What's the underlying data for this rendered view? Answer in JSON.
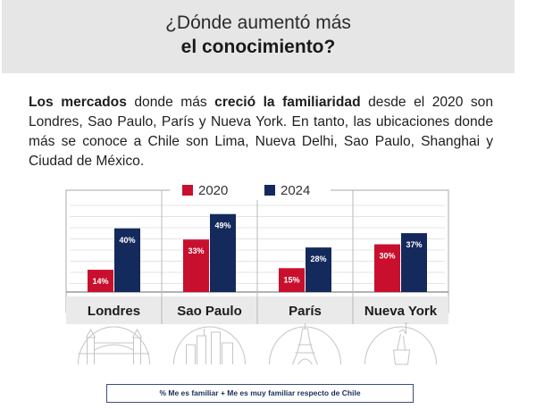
{
  "header": {
    "line1": "¿Dónde aumentó más",
    "line2": "el conocimiento?"
  },
  "intro": {
    "b1": "Los mercados",
    "t1": " donde más ",
    "b2": "creció la familiaridad",
    "t2": " desde el 2020 son Londres, Sao Paulo, París y Nueva York. En tanto, las ubicaciones donde más se conoce a Chile son Lima, Nueva Delhi, Sao Paulo, Shanghai y Ciudad de México."
  },
  "colors": {
    "s2020": "#c8102e",
    "s2024": "#14295c",
    "grid": "#e4e4e4",
    "frame": "#b8b8b8"
  },
  "chart_data": {
    "type": "bar",
    "categories": [
      "Londres",
      "Sao Paulo",
      "París",
      "Nueva York"
    ],
    "series": [
      {
        "name": "2020",
        "values": [
          14,
          33,
          15,
          30
        ],
        "labels": [
          "14%",
          "33%",
          "15%",
          "30%"
        ]
      },
      {
        "name": "2024",
        "values": [
          40,
          49,
          28,
          37
        ],
        "labels": [
          "40%",
          "49%",
          "28%",
          "37%"
        ]
      }
    ],
    "ylim": [
      0,
      64
    ],
    "grid": true,
    "legend_position": "top-center"
  },
  "city_icons": [
    "london-bridge-icon",
    "sao-paulo-skyline-icon",
    "eiffel-tower-icon",
    "statue-of-liberty-icon"
  ],
  "footer": {
    "note": "% Me es familiar + Me es muy familiar respecto de Chile"
  }
}
